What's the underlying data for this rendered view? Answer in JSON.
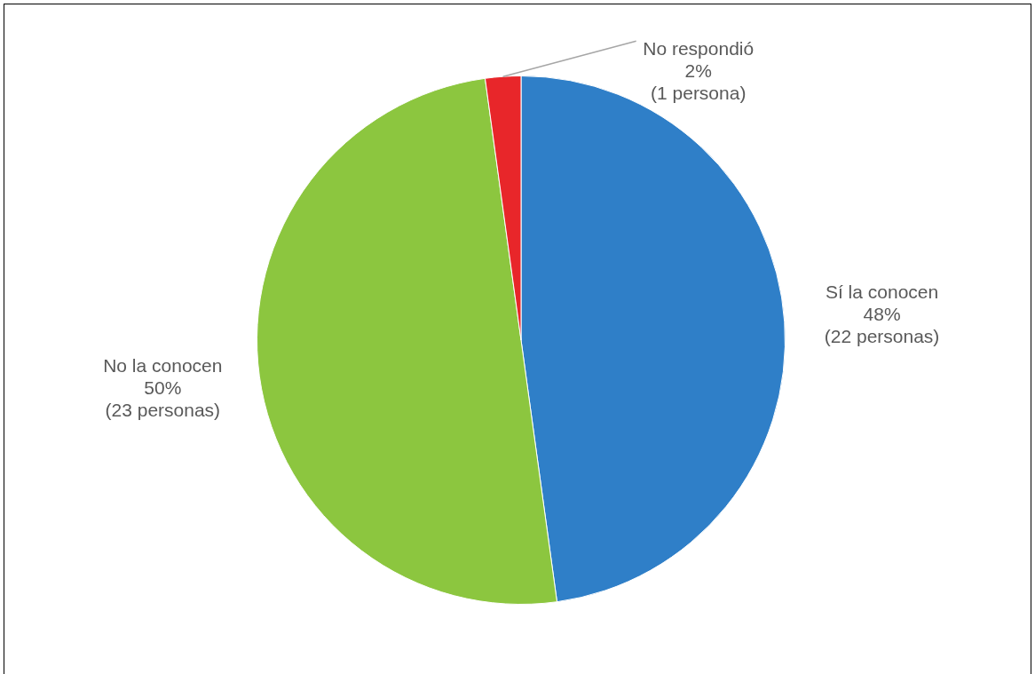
{
  "chart_data": {
    "type": "pie",
    "categories": [
      "Sí la conocen",
      "No la conocen",
      "No respondió"
    ],
    "values": [
      22,
      23,
      1
    ],
    "value_labels": [
      "48%\n(22 personas)",
      "50%\n(23 personas)",
      "2%\n(1 persona)"
    ],
    "colors": [
      "#2f7fc8",
      "#8cc63f",
      "#e8262a"
    ],
    "legend": false
  }
}
